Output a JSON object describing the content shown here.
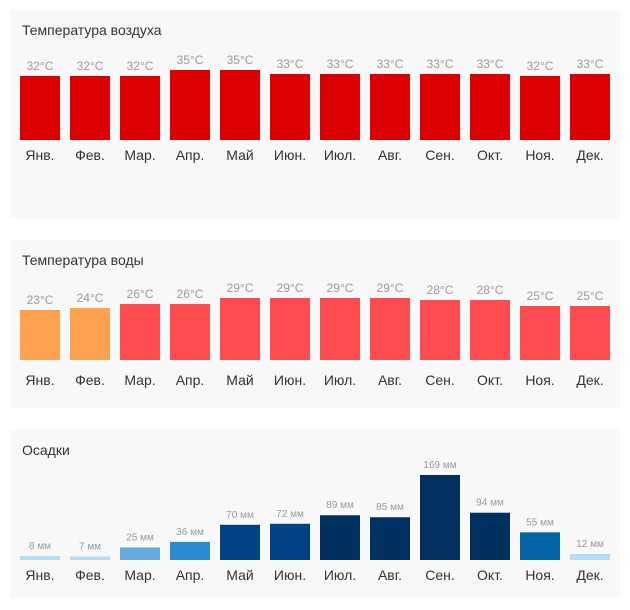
{
  "chart_data": [
    {
      "type": "bar",
      "title": "Температура воздуха",
      "unit": "°C",
      "categories": [
        "Янв.",
        "Фев.",
        "Мар.",
        "Апр.",
        "Май",
        "Июн.",
        "Июл.",
        "Авг.",
        "Сен.",
        "Окт.",
        "Ноя.",
        "Дек."
      ],
      "values": [
        32,
        32,
        32,
        35,
        35,
        33,
        33,
        33,
        33,
        33,
        32,
        33
      ],
      "labels": [
        "32°C",
        "32°C",
        "32°C",
        "35°C",
        "35°C",
        "33°C",
        "33°C",
        "33°C",
        "33°C",
        "33°C",
        "32°C",
        "33°C"
      ],
      "colors": [
        "#dd0000",
        "#dd0000",
        "#dd0000",
        "#dd0000",
        "#dd0000",
        "#dd0000",
        "#dd0000",
        "#dd0000",
        "#dd0000",
        "#dd0000",
        "#dd0000",
        "#dd0000"
      ]
    },
    {
      "type": "bar",
      "title": "Температура воды",
      "unit": "°C",
      "categories": [
        "Янв.",
        "Фев.",
        "Мар.",
        "Апр.",
        "Май",
        "Июн.",
        "Июл.",
        "Авг.",
        "Сен.",
        "Окт.",
        "Ноя.",
        "Дек."
      ],
      "values": [
        23,
        24,
        26,
        26,
        29,
        29,
        29,
        29,
        28,
        28,
        25,
        25
      ],
      "labels": [
        "23°C",
        "24°C",
        "26°C",
        "26°C",
        "29°C",
        "29°C",
        "29°C",
        "29°C",
        "28°C",
        "28°C",
        "25°C",
        "25°C"
      ],
      "colors": [
        "#ffa24f",
        "#ffa24f",
        "#ff4c51",
        "#ff4c51",
        "#ff4c51",
        "#ff4c51",
        "#ff4c51",
        "#ff4c51",
        "#ff4c51",
        "#ff4c51",
        "#ff4c51",
        "#ff4c51"
      ]
    },
    {
      "type": "bar",
      "title": "Осадки",
      "unit": "мм",
      "categories": [
        "Янв.",
        "Фев.",
        "Мар.",
        "Апр.",
        "Май",
        "Июн.",
        "Июл.",
        "Авг.",
        "Сен.",
        "Окт.",
        "Ноя.",
        "Дек."
      ],
      "values": [
        8,
        7,
        25,
        36,
        70,
        72,
        89,
        85,
        169,
        94,
        55,
        12
      ],
      "labels": [
        "8 мм",
        "7 мм",
        "25 мм",
        "36 мм",
        "70 мм",
        "72 мм",
        "89 мм",
        "85 мм",
        "169 мм",
        "94 мм",
        "55 мм",
        "12 мм"
      ],
      "colors": [
        "#b3dcf8",
        "#b3dcf8",
        "#64acdf",
        "#2a8bd2",
        "#004384",
        "#004384",
        "#00305f",
        "#00305f",
        "#00305f",
        "#00305f",
        "#0564a5",
        "#b3dcf8"
      ]
    }
  ]
}
